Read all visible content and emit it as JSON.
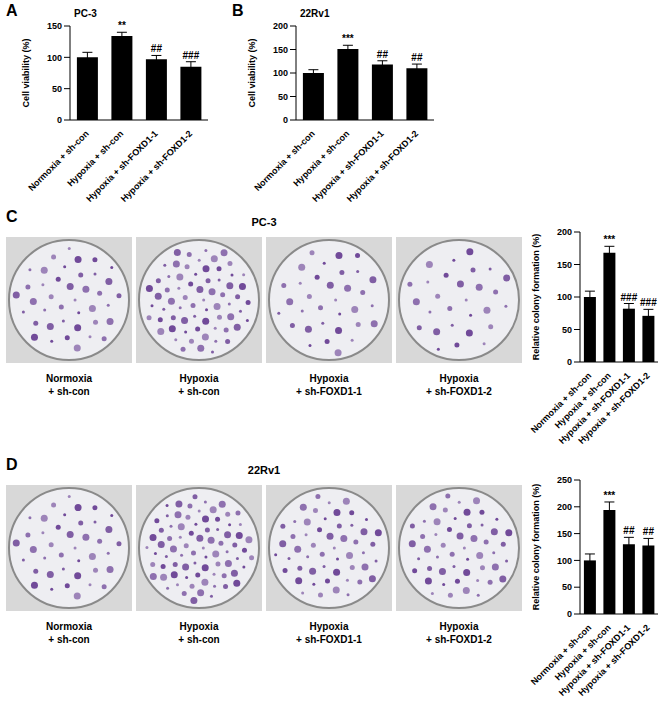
{
  "chart_data": [
    {
      "panel": "A",
      "type": "bar",
      "title": "PC-3",
      "y_label": "Cell viability (%)",
      "categories": [
        "Normoxia + sh-con",
        "Hypoxia + sh-con",
        "Hypoxia + sh-FOXD1-1",
        "Hypoxia + sh-FOXD1-2"
      ],
      "values": [
        100,
        134,
        97,
        85
      ],
      "errors": [
        8,
        6,
        6,
        8
      ],
      "annotations": [
        null,
        "**",
        "##",
        "###"
      ],
      "ylim": [
        0,
        150
      ],
      "yticks": [
        0,
        50,
        100,
        150
      ],
      "color": "#000000"
    },
    {
      "panel": "B",
      "type": "bar",
      "title": "22Rv1",
      "y_label": "Cell viability (%)",
      "categories": [
        "Normoxia + sh-con",
        "Hypoxia + sh-con",
        "Hypoxia + sh-FOXD1-1",
        "Hypoxia + sh-FOXD1-2"
      ],
      "values": [
        100,
        151,
        118,
        110
      ],
      "errors": [
        7,
        8,
        8,
        9
      ],
      "annotations": [
        null,
        "***",
        "##",
        "##"
      ],
      "ylim": [
        0,
        200
      ],
      "yticks": [
        0,
        50,
        100,
        150,
        200
      ],
      "color": "#000000"
    },
    {
      "panel": "C",
      "type": "bar",
      "title": "PC-3",
      "y_label": "Relative colony formation (%)",
      "categories": [
        "Normoxia + sh-con",
        "Hypoxia + sh-con",
        "Hypoxia + sh-FOXD1-1",
        "Hypoxia + sh-FOXD1-2"
      ],
      "values": [
        100,
        168,
        82,
        71
      ],
      "errors": [
        9,
        10,
        8,
        10
      ],
      "annotations": [
        null,
        "***",
        "###",
        "###"
      ],
      "ylim": [
        0,
        200
      ],
      "yticks": [
        0,
        50,
        100,
        150,
        200
      ],
      "color": "#000000"
    },
    {
      "panel": "D",
      "type": "bar",
      "title": "22Rv1",
      "y_label": "Relative colony formation (%)",
      "categories": [
        "Normoxia + sh-con",
        "Hypoxia + sh-con",
        "Hypoxia + sh-FOXD1-1",
        "Hypoxia + sh-FOXD1-2"
      ],
      "values": [
        100,
        194,
        130,
        128
      ],
      "errors": [
        12,
        15,
        13,
        13
      ],
      "annotations": [
        null,
        "***",
        "##",
        "##"
      ],
      "ylim": [
        0,
        250
      ],
      "yticks": [
        0,
        50,
        100,
        150,
        200,
        250
      ],
      "color": "#000000"
    }
  ]
}
